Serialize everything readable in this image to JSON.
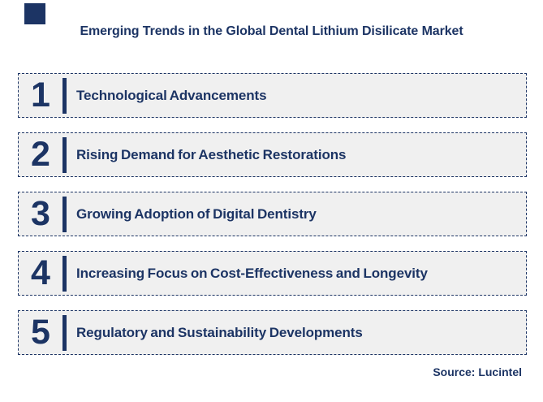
{
  "title": "Emerging Trends in the Global Dental Lithium Disilicate Market",
  "source": "Source: Lucintel",
  "colors": {
    "navy": "#1C3464",
    "box_background": "#F0F0F0",
    "page_background": "#FFFFFF"
  },
  "trends": [
    {
      "number": "1",
      "label": "Technological Advancements"
    },
    {
      "number": "2",
      "label": "Rising Demand for Aesthetic Restorations"
    },
    {
      "number": "3",
      "label": "Growing Adoption of Digital Dentistry"
    },
    {
      "number": "4",
      "label": "Increasing Focus on Cost-Effectiveness and Longevity"
    },
    {
      "number": "5",
      "label": "Regulatory and Sustainability Developments"
    }
  ]
}
